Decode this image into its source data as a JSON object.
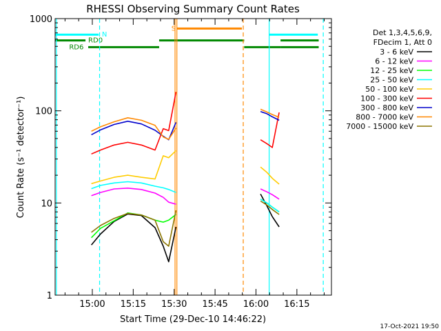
{
  "chart_data": {
    "type": "line",
    "title": "RHESSI Observing Summary Count Rates",
    "xlabel": "Start Time (29-Dec-10 14:46:22)",
    "ylabel": "Count Rate (s⁻¹ detector⁻¹)",
    "y_scale": "log",
    "ylim": [
      1,
      1000
    ],
    "xlim": [
      "14:46:22",
      "16:27:40"
    ],
    "y_ticks": [
      "1",
      "10",
      "100",
      "1000"
    ],
    "x_ticks": [
      "15:00",
      "15:15",
      "15:30",
      "15:45",
      "16:00",
      "16:15"
    ],
    "legend_header": [
      "Det 1,3,4,5,6,9,",
      "FDecim 1, Att 0"
    ],
    "legend_position": "right",
    "timestamp": "17-Oct-2021 19:50",
    "series": [
      {
        "name": "3 - 6 keV",
        "color": "#000000",
        "segments": [
          {
            "x": [
              "14:59:40",
              "15:03",
              "15:08",
              "15:13",
              "15:18",
              "15:23",
              "15:26",
              "15:28",
              "15:30:40"
            ],
            "y": [
              3.5,
              4.6,
              6.3,
              7.6,
              7.3,
              5.4,
              3.4,
              2.3,
              5.5
            ]
          },
          {
            "x": [
              "16:01:40",
              "16:04",
              "16:06",
              "16:08:30"
            ],
            "y": [
              12.5,
              9.3,
              7.1,
              5.5
            ]
          }
        ]
      },
      {
        "name": "6 - 12 keV",
        "color": "#ff00ff",
        "segments": [
          {
            "x": [
              "14:59:40",
              "15:03",
              "15:08",
              "15:13",
              "15:18",
              "15:23",
              "15:26",
              "15:28",
              "15:30:40"
            ],
            "y": [
              12,
              13,
              14.2,
              14.5,
              14,
              12.8,
              11.5,
              10.2,
              9.7
            ]
          },
          {
            "x": [
              "16:01:40",
              "16:04",
              "16:06",
              "16:08:30"
            ],
            "y": [
              14.2,
              13.2,
              12.3,
              11
            ]
          }
        ]
      },
      {
        "name": "12 - 25 keV",
        "color": "#00ff00",
        "segments": [
          {
            "x": [
              "14:59:40",
              "15:03",
              "15:08",
              "15:13",
              "15:18",
              "15:23",
              "15:26",
              "15:28",
              "15:30:40"
            ],
            "y": [
              4.2,
              5.3,
              6.4,
              7.8,
              7.4,
              6.5,
              6.2,
              6.5,
              7.5
            ]
          },
          {
            "x": [
              "16:01:40",
              "16:04",
              "16:06",
              "16:08:30"
            ],
            "y": [
              11,
              10,
              9,
              8
            ]
          }
        ]
      },
      {
        "name": "25 - 50 keV",
        "color": "#00ffff",
        "segments": [
          {
            "x": [
              "14:59:40",
              "15:03",
              "15:08",
              "15:13",
              "15:18",
              "15:23",
              "15:26",
              "15:28",
              "15:30:40"
            ],
            "y": [
              14.3,
              15.5,
              16.5,
              17,
              16.5,
              15.2,
              14.6,
              14,
              13
            ]
          },
          {
            "x": [
              "16:01:40",
              "16:04",
              "16:06",
              "16:08:30"
            ],
            "y": [
              11,
              10,
              9,
              8
            ]
          }
        ]
      },
      {
        "name": "50 - 100 keV",
        "color": "#ffcc00",
        "segments": [
          {
            "x": [
              "14:59:40",
              "15:03",
              "15:08",
              "15:13",
              "15:18",
              "15:23",
              "15:26",
              "15:28",
              "15:30:40"
            ],
            "y": [
              16.2,
              17.3,
              19,
              20,
              19,
              18.2,
              32.5,
              31,
              37
            ]
          },
          {
            "x": [
              "16:01:40",
              "16:04",
              "16:06",
              "16:08:30"
            ],
            "y": [
              24.5,
              21.5,
              18.5,
              16
            ]
          }
        ]
      },
      {
        "name": "100 - 300 keV",
        "color": "#ff0000",
        "segments": [
          {
            "x": [
              "14:59:40",
              "15:03",
              "15:08",
              "15:13",
              "15:18",
              "15:23",
              "15:26",
              "15:28",
              "15:30:40"
            ],
            "y": [
              34,
              37.5,
              42.5,
              45.5,
              42.5,
              37.5,
              64,
              61,
              160
            ]
          },
          {
            "x": [
              "16:01:40",
              "16:04",
              "16:06",
              "16:08:30"
            ],
            "y": [
              48.5,
              44,
              40,
              96
            ]
          }
        ]
      },
      {
        "name": "300 - 800 keV",
        "color": "#0000cc",
        "segments": [
          {
            "x": [
              "14:59:40",
              "15:03",
              "15:08",
              "15:13",
              "15:18",
              "15:23",
              "15:26",
              "15:28",
              "15:30:40"
            ],
            "y": [
              55,
              62,
              71,
              77,
              72,
              61.5,
              53,
              48.5,
              75
            ]
          },
          {
            "x": [
              "16:01:40",
              "16:04",
              "16:06",
              "16:08:30"
            ],
            "y": [
              98,
              93,
              86,
              79
            ]
          }
        ]
      },
      {
        "name": "800 - 7000 keV",
        "color": "#ff8800",
        "segments": [
          {
            "x": [
              "14:59:40",
              "15:03",
              "15:08",
              "15:13",
              "15:18",
              "15:23",
              "15:26",
              "15:28",
              "15:30:40"
            ],
            "y": [
              60,
              67,
              76,
              84,
              79,
              69.5,
              52,
              49,
              65
            ]
          },
          {
            "x": [
              "16:01:40",
              "16:04",
              "16:06",
              "16:08:30"
            ],
            "y": [
              104,
              97,
              91,
              85
            ]
          }
        ]
      },
      {
        "name": "7000 - 15000 keV",
        "color": "#8b7500",
        "segments": [
          {
            "x": [
              "14:59:40",
              "15:03",
              "15:08",
              "15:13",
              "15:18",
              "15:23",
              "15:26",
              "15:28",
              "15:30:40"
            ],
            "y": [
              4.8,
              5.7,
              6.8,
              7.7,
              7.4,
              6.5,
              3.8,
              3.4,
              8.3
            ]
          },
          {
            "x": [
              "16:01:40",
              "16:04",
              "16:06",
              "16:08:30"
            ],
            "y": [
              10.5,
              9.5,
              8.5,
              7.5
            ]
          }
        ]
      }
    ],
    "vertical_markers": [
      {
        "x": "14:46:50",
        "style": "solid",
        "color": "#00ffff"
      },
      {
        "x": "15:02:40",
        "style": "dashed",
        "color": "#00ffff"
      },
      {
        "x": "15:30:20",
        "style": "solid",
        "color": "#ff8800"
      },
      {
        "x": "15:31:00",
        "style": "solid",
        "color": "#ff8800"
      },
      {
        "x": "15:55:20",
        "style": "dashed",
        "color": "#ff8800"
      },
      {
        "x": "16:04:50",
        "style": "solid",
        "color": "#00ffff"
      },
      {
        "x": "16:24:40",
        "style": "dashed",
        "color": "#00ffff"
      }
    ],
    "status_bars": [
      {
        "label": "N",
        "color": "#00ffff",
        "y": 670,
        "ranges": [
          [
            "14:46:22",
            "15:02:20"
          ],
          [
            "16:04:50",
            "16:22:40"
          ]
        ],
        "label_at": "15:03"
      },
      {
        "label": "RD0",
        "color": "#008800",
        "y": 580,
        "ranges": [
          [
            "14:46:22",
            "14:57:30"
          ]
        ],
        "label_at": "14:58"
      },
      {
        "label": "RD6",
        "color": "#008800",
        "y": 490,
        "ranges": [
          [
            "14:58:30",
            "15:24:30"
          ],
          [
            "16:09:00",
            "16:23:00"
          ]
        ],
        "label_at": "14:51"
      },
      {
        "label": "",
        "color": "#008800",
        "y": 580,
        "ranges": [
          [
            "15:24:30",
            "15:55:40"
          ],
          [
            "16:09:00",
            "16:23:00"
          ]
        ],
        "label_at": ""
      },
      {
        "label": "",
        "color": "#008800",
        "y": 490,
        "ranges": [
          [
            "15:55:40",
            "16:09:00"
          ]
        ],
        "label_at": ""
      },
      {
        "label": "S",
        "color": "#ff8800",
        "y": 780,
        "ranges": [
          [
            "15:31:00",
            "15:54:50"
          ]
        ],
        "label_at": "15:28:30"
      }
    ]
  }
}
